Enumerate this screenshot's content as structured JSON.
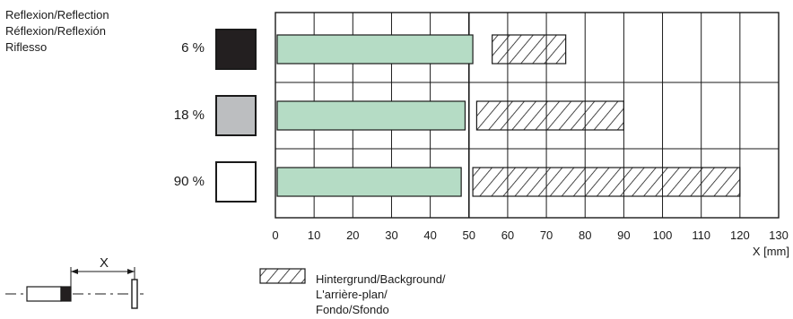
{
  "legend_title": {
    "line1": "Reflexion/Reflection",
    "line2": "Réflexion/Reflexión",
    "line3": "Riflesso"
  },
  "chart_data": {
    "type": "bar",
    "orientation": "horizontal",
    "categories": [
      "6 %",
      "18 %",
      "90 %"
    ],
    "category_colors": [
      "#231f20",
      "#bcbec0",
      "#ffffff"
    ],
    "series": [
      {
        "values": [
          51,
          49,
          48
        ],
        "color": "#b5dcc5"
      },
      {
        "name": "Hintergrund/Background/ L'arrière-plan/ Fondo/Sfondo",
        "ranges": [
          [
            56,
            75
          ],
          [
            52,
            90
          ],
          [
            51,
            120
          ]
        ],
        "pattern": "hatch"
      }
    ],
    "reference_line": 50,
    "xlabel": "X [mm]",
    "xlim": [
      0,
      130
    ],
    "xticks": [
      0,
      10,
      20,
      30,
      40,
      50,
      60,
      70,
      80,
      90,
      100,
      110,
      120,
      130
    ],
    "grid": true,
    "legend_position": "bottom",
    "legend_lines": [
      "Hintergrund/Background/",
      "L'arrière-plan/",
      "Fondo/Sfondo"
    ],
    "diagram_label": "X"
  }
}
